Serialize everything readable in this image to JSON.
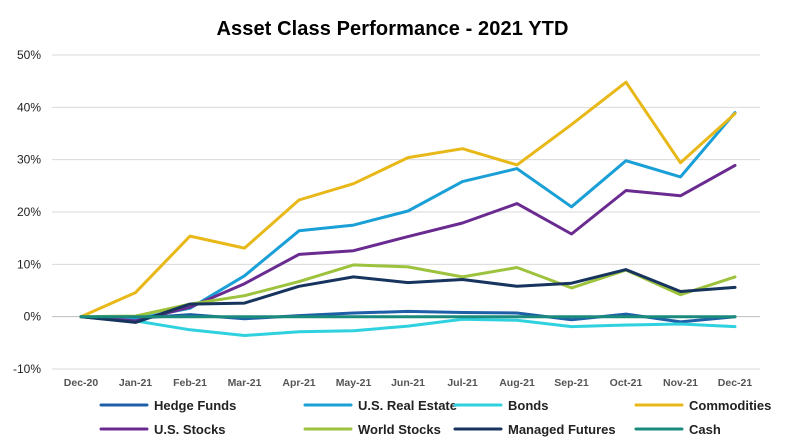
{
  "chart_data": {
    "type": "line",
    "title": "Asset Class Performance - 2021 YTD",
    "xlabel": "",
    "ylabel": "",
    "ylim": [
      -10,
      50
    ],
    "yticks": [
      -10,
      0,
      10,
      20,
      30,
      40,
      50
    ],
    "ytick_labels": [
      "-10%",
      "0%",
      "10%",
      "20%",
      "30%",
      "40%",
      "50%"
    ],
    "grid": true,
    "legend_position": "bottom",
    "categories": [
      "Dec-20",
      "Jan-21",
      "Feb-21",
      "Mar-21",
      "Apr-21",
      "May-21",
      "Jun-21",
      "Jul-21",
      "Aug-21",
      "Sep-21",
      "Oct-21",
      "Nov-21",
      "Dec-21"
    ],
    "series": [
      {
        "name": "Hedge Funds",
        "color": "#1f5fa8",
        "values": [
          0,
          -0.3,
          0.4,
          -0.4,
          0.2,
          0.7,
          1.0,
          0.8,
          0.7,
          -0.6,
          0.5,
          -1.0,
          0.0
        ]
      },
      {
        "name": "U.S. Real Estate",
        "color": "#1a9fd6",
        "values": [
          0,
          -0.4,
          1.6,
          7.8,
          16.4,
          17.5,
          20.2,
          25.8,
          28.3,
          21.0,
          29.8,
          26.7,
          39.0
        ]
      },
      {
        "name": "Bonds",
        "color": "#2fd1de",
        "values": [
          0,
          -0.8,
          -2.5,
          -3.6,
          -2.9,
          -2.7,
          -1.8,
          -0.5,
          -0.7,
          -1.9,
          -1.6,
          -1.4,
          -1.9
        ]
      },
      {
        "name": "Commodities",
        "color": "#e8b819",
        "values": [
          0,
          4.6,
          15.4,
          13.1,
          22.3,
          25.4,
          30.4,
          32.1,
          29.0,
          36.7,
          44.8,
          29.4,
          38.8
        ]
      },
      {
        "name": "U.S. Stocks",
        "color": "#6a2b91",
        "values": [
          0,
          -0.8,
          1.8,
          6.3,
          11.9,
          12.6,
          15.3,
          17.9,
          21.6,
          15.8,
          24.1,
          23.1,
          28.9
        ]
      },
      {
        "name": "World Stocks",
        "color": "#9dc23d",
        "values": [
          0,
          0.1,
          2.4,
          4.0,
          6.7,
          9.9,
          9.5,
          7.6,
          9.4,
          5.5,
          8.9,
          4.2,
          7.6
        ]
      },
      {
        "name": "Managed Futures",
        "color": "#16345e",
        "values": [
          0,
          -1.1,
          2.4,
          2.6,
          5.8,
          7.6,
          6.5,
          7.1,
          5.8,
          6.4,
          9.0,
          4.8,
          5.6
        ]
      },
      {
        "name": "Cash",
        "color": "#1a8a7c",
        "values": [
          0,
          0.0,
          0.0,
          0.0,
          0.0,
          0.0,
          0.0,
          0.0,
          0.0,
          0.0,
          0.0,
          0.0,
          0.0
        ]
      }
    ]
  }
}
